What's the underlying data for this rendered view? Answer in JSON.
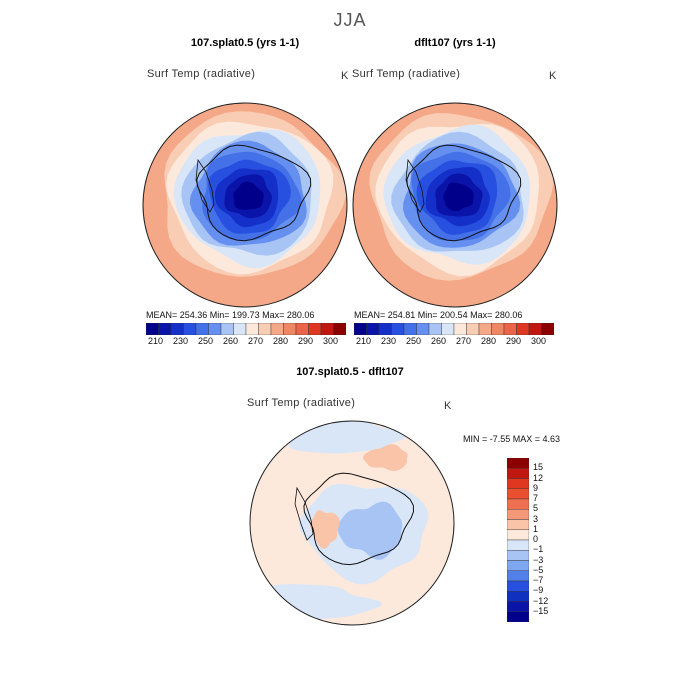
{
  "page": {
    "season": "JJA"
  },
  "panels": [
    {
      "title": "107.splat0.5 (yrs 1-1)",
      "variable": "Surf Temp (radiative)",
      "units": "K",
      "stats": "MEAN= 254.36   Min= 199.73   Max= 280.06"
    },
    {
      "title": "dflt107 (yrs 1-1)",
      "variable": "Surf Temp (radiative)",
      "units": "K",
      "stats": "MEAN= 254.81   Min= 200.54   Max= 280.06"
    },
    {
      "title": "107.splat0.5 - dflt107",
      "variable": "Surf Temp (radiative)",
      "units": "K",
      "stats": "MIN =   -7.55 MAX =    4.63"
    }
  ],
  "abs_colorbar": {
    "labels": [
      "210",
      "230",
      "250",
      "260",
      "270",
      "280",
      "290",
      "300"
    ],
    "colors": [
      "#00008b",
      "#0a14a8",
      "#1530c8",
      "#2850e0",
      "#4470e8",
      "#6690f0",
      "#a8c4f5",
      "#d8e6f8",
      "#fde8dc",
      "#f9cdb4",
      "#f4a888",
      "#ef8664",
      "#ea6448",
      "#e03820",
      "#c01810",
      "#8b0000"
    ]
  },
  "diff_colorbar": {
    "labels": [
      "15",
      "12",
      "9",
      "7",
      "5",
      "3",
      "1",
      "0",
      "−1",
      "−3",
      "−5",
      "−7",
      "−9",
      "−12",
      "−15"
    ],
    "colors": [
      "#8b0000",
      "#c01810",
      "#e03820",
      "#ea5030",
      "#ef7050",
      "#f49878",
      "#f9c4a8",
      "#fde8dc",
      "#d8e6f8",
      "#a8c4f5",
      "#7fa6f0",
      "#5080e8",
      "#2850e0",
      "#1030c0",
      "#0a14a8",
      "#00008b"
    ]
  },
  "maps": [
    {
      "kind": "absolute",
      "ring_colors": [
        "#f4a888",
        "#f9cdb4",
        "#fde8dc",
        "#d8e6f8",
        "#a8c4f5",
        "#6690f0",
        "#4470e8",
        "#2850e0",
        "#1530c8",
        "#0a14a8",
        "#00008b"
      ]
    },
    {
      "kind": "absolute",
      "ring_colors": [
        "#f4a888",
        "#f9cdb4",
        "#fde8dc",
        "#d8e6f8",
        "#a8c4f5",
        "#6690f0",
        "#4470e8",
        "#2850e0",
        "#1530c8",
        "#0a14a8",
        "#00008b"
      ]
    },
    {
      "kind": "difference",
      "base_color": "#fde8dc",
      "blob_colors": [
        "#d8e6f8",
        "#a8c4f5",
        "#f9c4a8"
      ]
    }
  ]
}
